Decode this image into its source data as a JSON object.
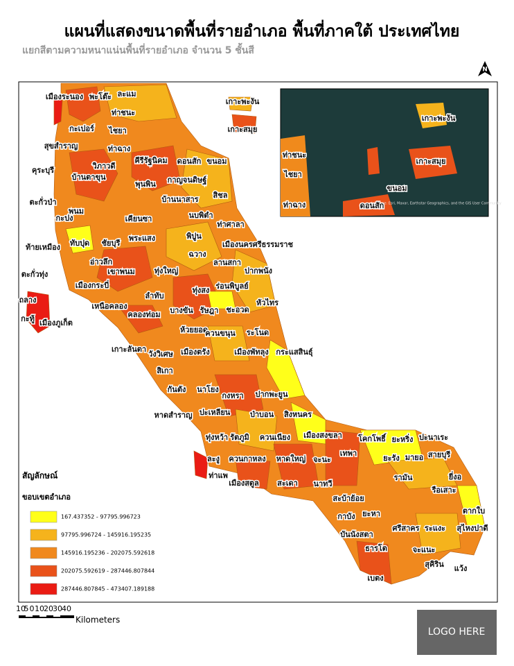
{
  "header": {
    "title": "แผนที่แสดงขนาดพื้นที่รายอำเภอ พื้นที่ภาคใต้ ประเทศไทย",
    "subtitle": "แยกสีตามความหนาแน่นพื้นที่รายอำเภอ จำนวน 5 ชั้นสี"
  },
  "north_arrow": "N",
  "map": {
    "district_labels": [
      "เมืองระนอง",
      "พะโต๊ะ",
      "ละแม",
      "ท่าชนะ",
      "กะเปอร์",
      "ไชยา",
      "สุขสำราญ",
      "ท่าฉาง",
      "คุระบุรี",
      "วิภาวดี",
      "บ้านตาขุน",
      "คีรีรัฐนิคม",
      "ดอนสัก",
      "ขนอม",
      "พุนพิน",
      "กาญจนดิษฐ์",
      "บ้านนาสาร",
      "สิชล",
      "ตะกั่วป่า",
      "พนม",
      "กะปง",
      "เคียนซา",
      "นบพิตำ",
      "ท่าศาลา",
      "ทับปุด",
      "ชัยบุรี",
      "พระแสง",
      "พิปูน",
      "เมืองนครศรีธรรมราช",
      "ท้ายเหมือง",
      "อ่าวลึก",
      "ฉวาง",
      "เขาพนม",
      "ทุ่งใหญ่",
      "ลานสกา",
      "ปากพนัง",
      "ตะกั่วทุ่ง",
      "เมืองกระบี่",
      "ทุ่งสง",
      "ร่อนพิบูลย์",
      "ถลาง",
      "ลำทับ",
      "เหนือคลอง",
      "บางขัน",
      "รัษฎา",
      "ชะอวด",
      "หัวไทร",
      "กะทู้",
      "เมืองภูเก็ต",
      "คลองท่อม",
      "ห้วยยอด",
      "ควนขนุน",
      "ระโนด",
      "เกาะลันตา",
      "วังวิเศษ",
      "สิเกา",
      "เมืองตรัง",
      "เมืองพัทลุง",
      "กระแสสินธุ์",
      "กันตัง",
      "นาโยง",
      "กงหรา",
      "ปากพะยูน",
      "หาดสำราญ",
      "ปะเหลียน",
      "ป่าบอน",
      "สิงหนคร",
      "ทุ่งหว้า",
      "รัตภูมิ",
      "ควนเนียง",
      "เมืองสงขลา",
      "ละงู",
      "ควนกาหลง",
      "หาดใหญ่",
      "จะนะ",
      "ท่าแพ",
      "เมืองสตูล",
      "สะเดา",
      "นาทวี",
      "เทพา",
      "โคกโพธิ์",
      "ยะหริ่ง",
      "ปะนาเระ",
      "ยะรัง",
      "มายอ",
      "สายบุรี",
      "รามัน",
      "ยี่งอ",
      "สะบ้าย้อย",
      "กาบัง",
      "ยะหา",
      "รือเสาะ",
      "บันนังสตา",
      "ศรีสาคร",
      "ระแงะ",
      "ตากใบ",
      "ธารโต",
      "จะแนะ",
      "สุไหงปาดี",
      "สุคิริน",
      "แว้ง",
      "เบตง",
      "เกาะพะงัน",
      "เกาะสมุย"
    ]
  },
  "inset": {
    "labels": [
      "เกาะพะงัน",
      "เกาะสมุย",
      "ท่าชนะ",
      "ไชยา",
      "ขนอม",
      "ท่าฉาง",
      "ดอนสัก"
    ],
    "attribution": "Source: Esri, Maxar, Earthstar Geographics, and the GIS User Community"
  },
  "legend": {
    "title": "สัญลักษณ์",
    "subtitle": "ขอบเขตอำเภอ",
    "classes": [
      {
        "label": "167.437352 - 97795.996723",
        "color": "#ffff1a"
      },
      {
        "label": "97795.996724 - 145916.195235",
        "color": "#f5b31c"
      },
      {
        "label": "145916.195236 - 202075.592618",
        "color": "#f0891e"
      },
      {
        "label": "202075.592619 - 287446.807844",
        "color": "#e9521a"
      },
      {
        "label": "287446.807845 - 473407.189188",
        "color": "#ea1c14"
      }
    ]
  },
  "scale_bar": {
    "ticks": [
      "10",
      "5",
      "0",
      "10",
      "20",
      "30",
      "40"
    ],
    "unit": "Kilometers"
  },
  "logo": "LOGO HERE"
}
